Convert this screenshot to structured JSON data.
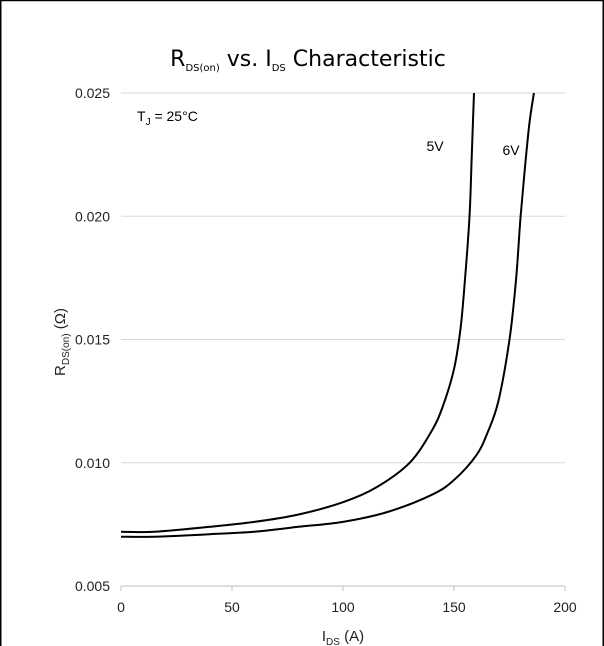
{
  "chart_data": {
    "type": "line",
    "title": {
      "main": "R",
      "sub": "DS(on)",
      "mid": " vs. I",
      "sub2": "DS",
      "rest": " Characteristic"
    },
    "xlabel": {
      "main": "I",
      "sub": "DS",
      "rest": " (A)"
    },
    "ylabel": {
      "main": "R",
      "sub": "DS(on)",
      "rest": " (Ω)"
    },
    "annotation": {
      "main": "T",
      "sub": "J",
      "rest": " = 25°C"
    },
    "xlim": [
      0,
      200
    ],
    "ylim": [
      0.005,
      0.025
    ],
    "x_ticks": [
      "0",
      "50",
      "100",
      "150",
      "200"
    ],
    "y_ticks": [
      "0.005",
      "0.010",
      "0.015",
      "0.020",
      "0.025"
    ],
    "grid": true,
    "series": [
      {
        "name": "5V",
        "x": [
          0,
          15,
          40,
          60,
          80,
          100,
          115,
          130,
          140,
          145,
          150,
          153,
          155,
          157,
          158,
          159
        ],
        "y": [
          0.0072,
          0.0072,
          0.0074,
          0.0076,
          0.0079,
          0.0084,
          0.009,
          0.01,
          0.0113,
          0.0123,
          0.0138,
          0.0155,
          0.0175,
          0.02,
          0.0225,
          0.025
        ]
      },
      {
        "name": "6V",
        "x": [
          0,
          15,
          40,
          60,
          80,
          100,
          120,
          140,
          150,
          160,
          165,
          170,
          175,
          178,
          180,
          182,
          184,
          186
        ],
        "y": [
          0.007,
          0.007,
          0.0071,
          0.0072,
          0.0074,
          0.0076,
          0.008,
          0.0087,
          0.0093,
          0.0103,
          0.0112,
          0.0125,
          0.015,
          0.0175,
          0.02,
          0.022,
          0.0238,
          0.025
        ]
      }
    ]
  }
}
